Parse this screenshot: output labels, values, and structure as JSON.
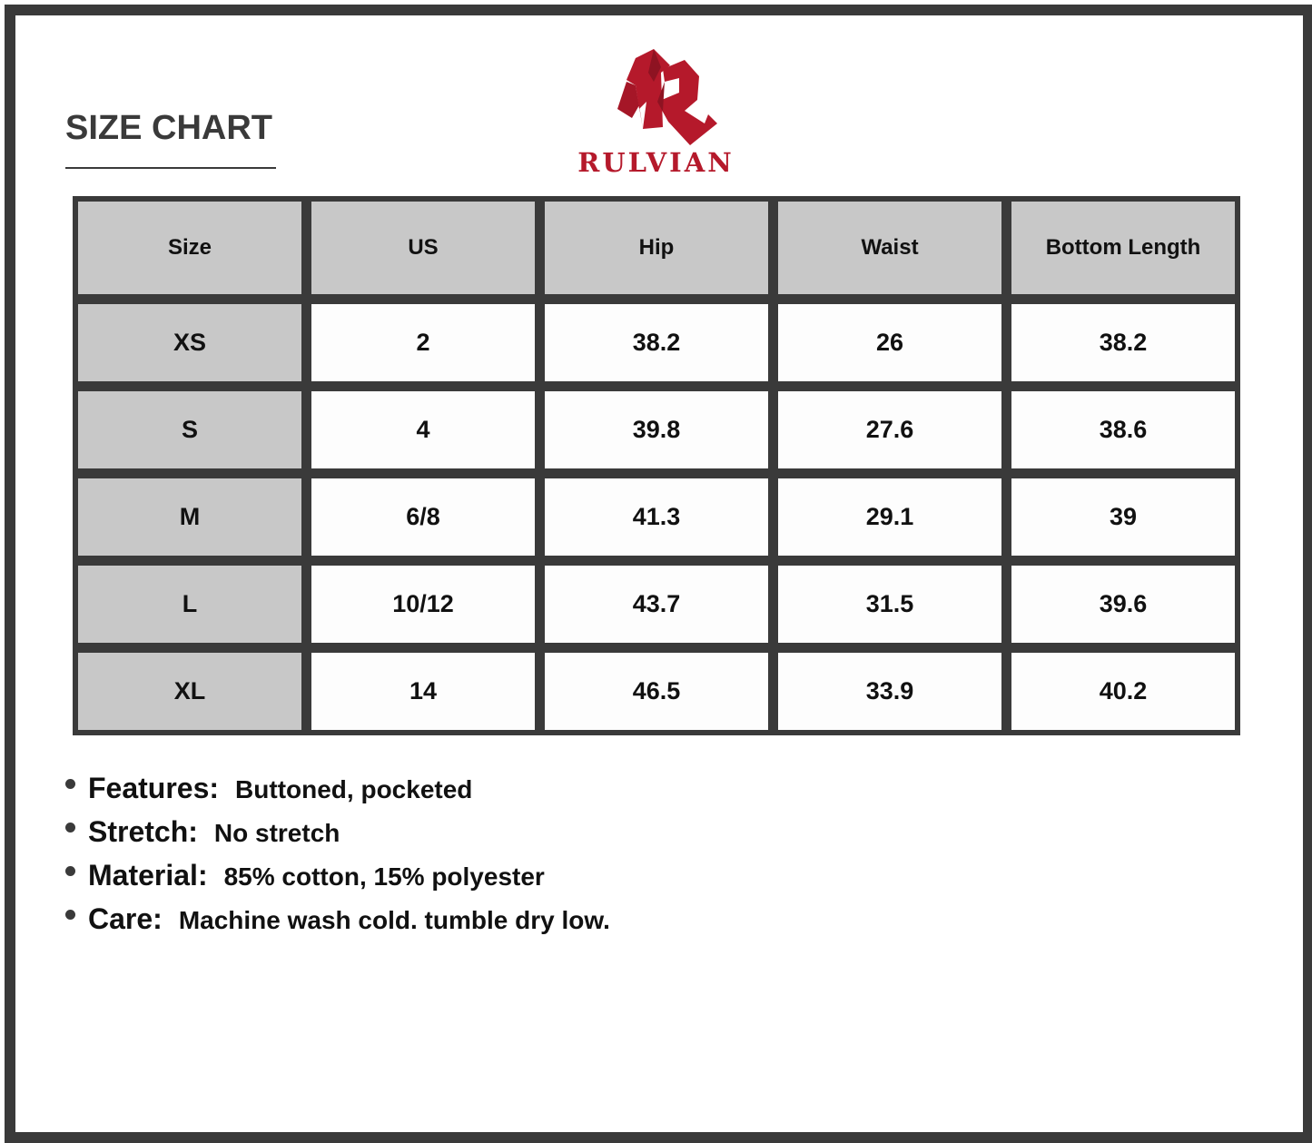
{
  "title": "SIZE CHART",
  "brand": {
    "name": "RULVIAN",
    "color": "#b5192b"
  },
  "table": {
    "headers": [
      "Size",
      "US",
      "Hip",
      "Waist",
      "Bottom Length"
    ],
    "rows": [
      [
        "XS",
        "2",
        "38.2",
        "26",
        "38.2"
      ],
      [
        "S",
        "4",
        "39.8",
        "27.6",
        "38.6"
      ],
      [
        "M",
        "6/8",
        "41.3",
        "29.1",
        "39"
      ],
      [
        "L",
        "10/12",
        "43.7",
        "31.5",
        "39.6"
      ],
      [
        "XL",
        "14",
        "46.5",
        "33.9",
        "40.2"
      ]
    ]
  },
  "specs": [
    {
      "label": "Features:",
      "value": "Buttoned, pocketed"
    },
    {
      "label": "Stretch:",
      "value": "No stretch"
    },
    {
      "label": "Material:",
      "value": "85% cotton, 15% polyester"
    },
    {
      "label": "Care:",
      "value": "Machine wash cold. tumble dry low."
    }
  ]
}
